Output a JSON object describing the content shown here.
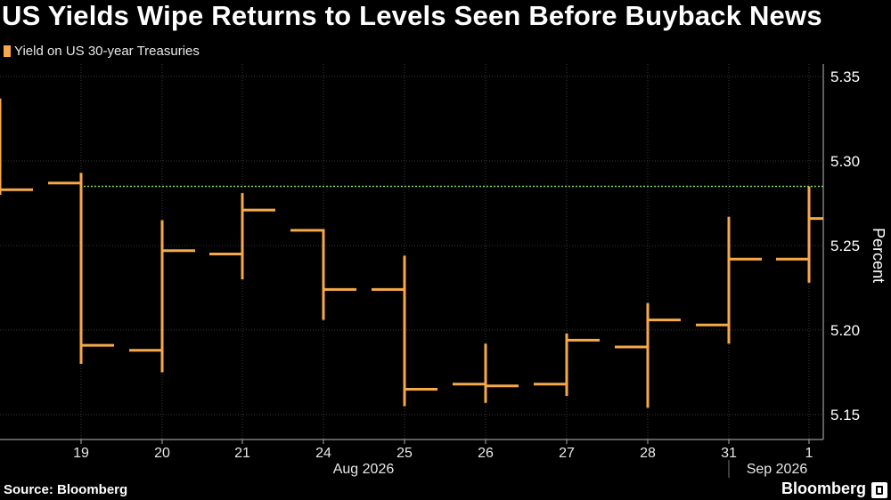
{
  "header": {
    "title": "US Yields Wipe Returns to Levels Seen Before Buyback News"
  },
  "footer": {
    "source": "Source: Bloomberg",
    "brand": "Bloomberg"
  },
  "colors": {
    "series": "#f7a94a",
    "reference_line": "#7ed957",
    "grid": "#3a3a3a",
    "background": "#000000"
  },
  "chart_data": {
    "type": "ohlc",
    "title": "US Yields Wipe Returns to Levels Seen Before Buyback News",
    "ylabel": "Percent",
    "ylim": [
      5.135,
      5.355
    ],
    "yticks": [
      5.15,
      5.2,
      5.25,
      5.3,
      5.35
    ],
    "ytick_labels": [
      "5.15",
      "5.20",
      "5.25",
      "5.30",
      "5.35"
    ],
    "x_tick_labels": [
      "19",
      "20",
      "21",
      "24",
      "25",
      "26",
      "27",
      "28",
      "31",
      "1"
    ],
    "month_labels": [
      "Aug 2026",
      "Sep 2026"
    ],
    "grid": true,
    "legend": {
      "position": "top-left",
      "entries": [
        "Yield on US 30-year Treasuries"
      ]
    },
    "series": [
      {
        "name": "Yield on US 30-year Treasuries",
        "bars": [
          {
            "date": "2026-08-18",
            "open": null,
            "high": 5.337,
            "low": 5.28,
            "close": 5.283
          },
          {
            "date": "2026-08-19",
            "open": 5.287,
            "high": 5.293,
            "low": 5.18,
            "close": 5.191
          },
          {
            "date": "2026-08-20",
            "open": 5.188,
            "high": 5.265,
            "low": 5.175,
            "close": 5.247
          },
          {
            "date": "2026-08-21",
            "open": 5.245,
            "high": 5.281,
            "low": 5.23,
            "close": 5.271
          },
          {
            "date": "2026-08-24",
            "open": 5.259,
            "high": 5.259,
            "low": 5.206,
            "close": 5.224
          },
          {
            "date": "2026-08-25",
            "open": 5.224,
            "high": 5.244,
            "low": 5.155,
            "close": 5.165
          },
          {
            "date": "2026-08-26",
            "open": 5.168,
            "high": 5.192,
            "low": 5.157,
            "close": 5.167
          },
          {
            "date": "2026-08-27",
            "open": 5.168,
            "high": 5.198,
            "low": 5.161,
            "close": 5.194
          },
          {
            "date": "2026-08-28",
            "open": 5.19,
            "high": 5.216,
            "low": 5.154,
            "close": 5.206
          },
          {
            "date": "2026-08-31",
            "open": 5.203,
            "high": 5.267,
            "low": 5.192,
            "close": 5.242
          },
          {
            "date": "2026-09-01",
            "open": 5.242,
            "high": 5.285,
            "low": 5.228,
            "close": 5.266
          }
        ]
      }
    ],
    "reference_lines": [
      {
        "y": 5.285,
        "style": "dotted"
      }
    ]
  }
}
